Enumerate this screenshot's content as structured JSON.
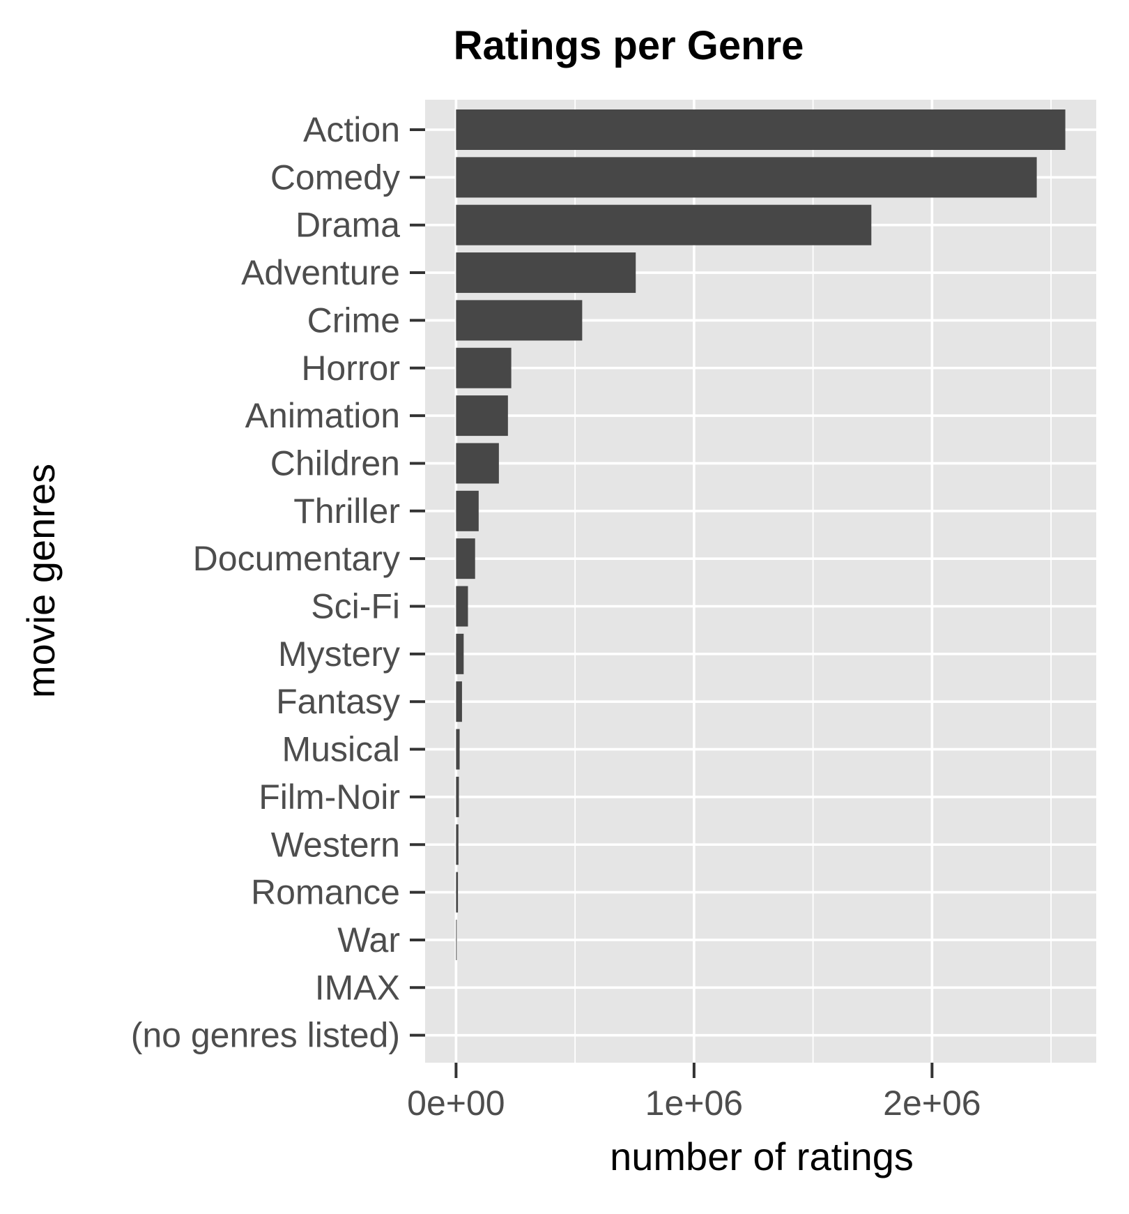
{
  "chart_data": {
    "type": "bar",
    "orientation": "horizontal",
    "title": "Ratings per Genre",
    "xlabel": "number of ratings",
    "ylabel": "movie genres",
    "categories": [
      "Action",
      "Comedy",
      "Drama",
      "Adventure",
      "Crime",
      "Horror",
      "Animation",
      "Children",
      "Thriller",
      "Documentary",
      "Sci-Fi",
      "Mystery",
      "Fantasy",
      "Musical",
      "Film-Noir",
      "Western",
      "Romance",
      "War",
      "IMAX",
      "(no genres listed)"
    ],
    "values": [
      2560000,
      2440000,
      1745000,
      755000,
      530000,
      232000,
      218000,
      180000,
      95000,
      80000,
      50000,
      32000,
      25000,
      15000,
      12000,
      10000,
      8000,
      3000,
      0,
      0
    ],
    "xlim": [
      -130000,
      2690000
    ],
    "xticks": [
      0,
      1000000,
      2000000
    ],
    "xtick_labels": [
      "0e+00",
      "1e+06",
      "2e+06"
    ],
    "grid": true,
    "bar_color": "#474747",
    "panel_background": "#e5e5e5",
    "grid_color": "#ffffff"
  }
}
